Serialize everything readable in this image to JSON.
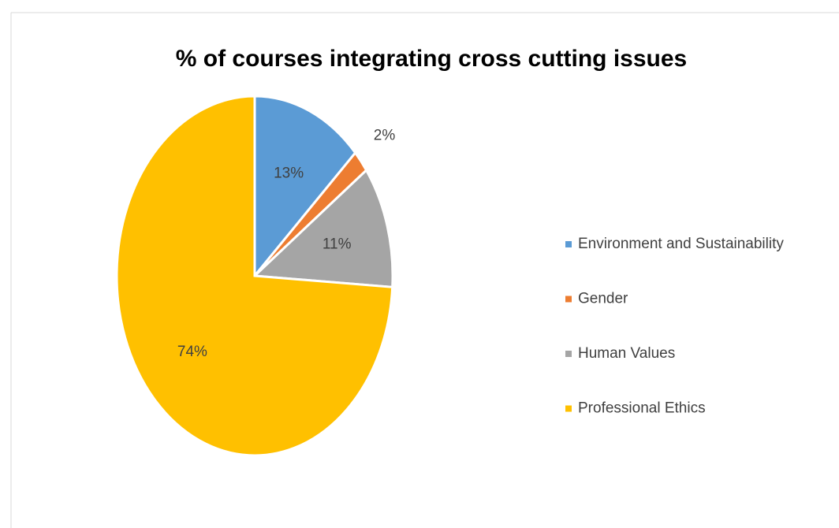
{
  "chart_data": {
    "type": "pie",
    "title": "% of courses integrating cross cutting issues",
    "categories": [
      "Environment and Sustainability",
      "Gender",
      "Human Values",
      "Professional Ethics"
    ],
    "values": [
      13,
      2,
      11,
      74
    ],
    "value_labels": [
      "13%",
      "2%",
      "11%",
      "74%"
    ],
    "colors": [
      "#5b9bd5",
      "#ed7d31",
      "#a5a5a5",
      "#ffc000"
    ],
    "legend": "right"
  }
}
